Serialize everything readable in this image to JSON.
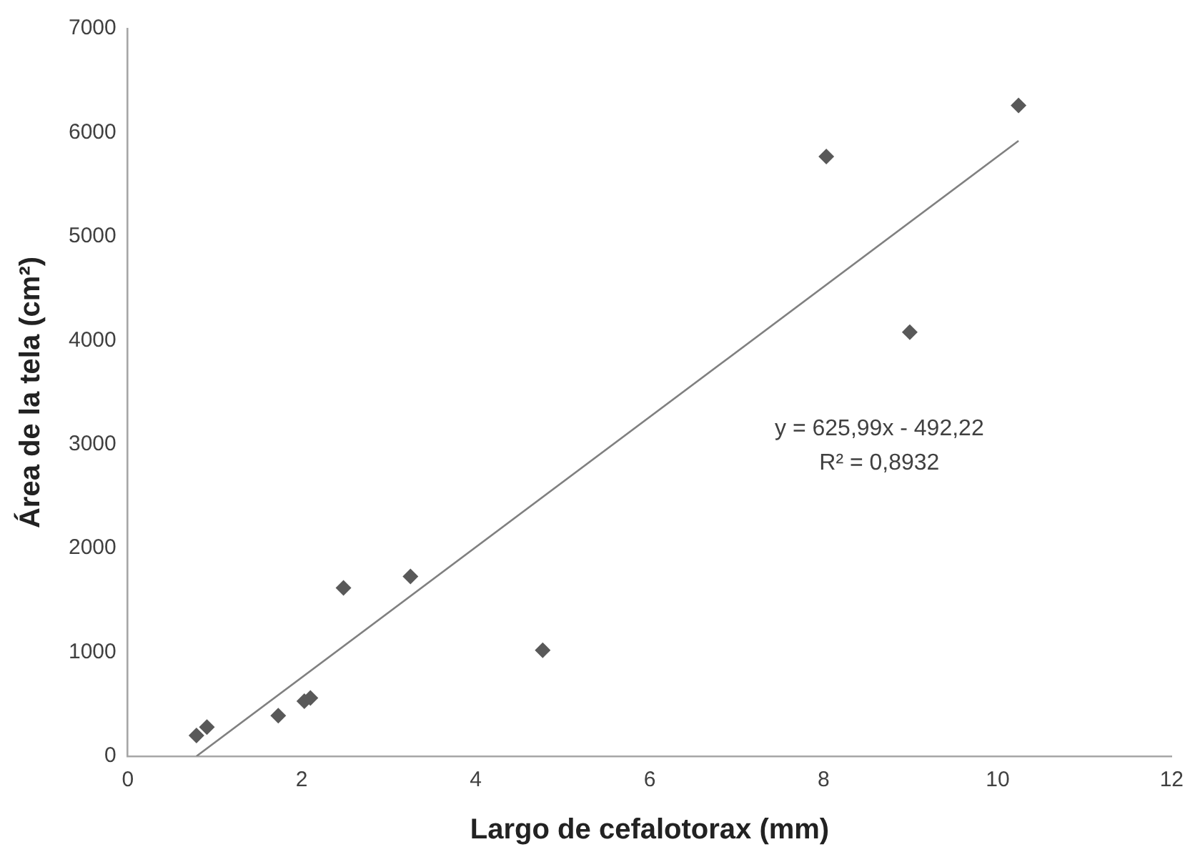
{
  "chart_data": {
    "type": "scatter",
    "xlabel": "Largo de cefalotorax (mm)",
    "ylabel": "Área de la tela (cm²)",
    "xlim": [
      0,
      12
    ],
    "xticks": [
      0,
      2,
      4,
      6,
      8,
      10,
      12
    ],
    "ylim": [
      0,
      7000
    ],
    "yticks": [
      0,
      1000,
      2000,
      3000,
      4000,
      5000,
      6000,
      7000
    ],
    "grid": false,
    "legend": false,
    "marker": "diamond",
    "series": [
      {
        "type": "scatter",
        "color": "#595959",
        "x": [
          0.79,
          0.91,
          1.73,
          2.03,
          2.1,
          2.48,
          3.25,
          4.77,
          8.03,
          8.99,
          10.24
        ],
        "values": [
          200,
          280,
          390,
          530,
          560,
          1620,
          1730,
          1020,
          5770,
          4080,
          6260
        ]
      },
      {
        "type": "line",
        "color": "#808080",
        "marker": "none",
        "x": [
          0.79,
          10.24
        ],
        "values": [
          0,
          5920
        ]
      }
    ],
    "annotations": [
      "y = 625,99x - 492,22",
      "R² = 0,8932"
    ]
  }
}
